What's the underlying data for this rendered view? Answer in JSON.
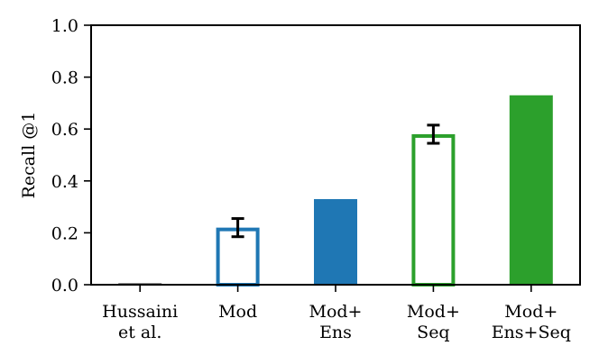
{
  "chart_data": {
    "type": "bar",
    "title": "",
    "xlabel": "",
    "ylabel": "Recall @1",
    "ylim": [
      0,
      1.0
    ],
    "yticks": [
      "0.0",
      "0.2",
      "0.4",
      "0.6",
      "0.8",
      "1.0"
    ],
    "grid": false,
    "categories": [
      [
        "Hussaini",
        "et al."
      ],
      [
        "Mod"
      ],
      [
        "Mod+",
        "Ens"
      ],
      [
        "Mod+",
        "Seq"
      ],
      [
        "Mod+",
        "Ens+Seq"
      ]
    ],
    "values": [
      0.005,
      0.22,
      0.33,
      0.58,
      0.73
    ],
    "errors": [
      null,
      0.035,
      null,
      0.035,
      null
    ],
    "styles": [
      "filled",
      "hollow",
      "filled",
      "hollow",
      "filled"
    ],
    "colors": [
      "#000000",
      "#1f77b4",
      "#1f77b4",
      "#2ca02c",
      "#2ca02c"
    ]
  }
}
